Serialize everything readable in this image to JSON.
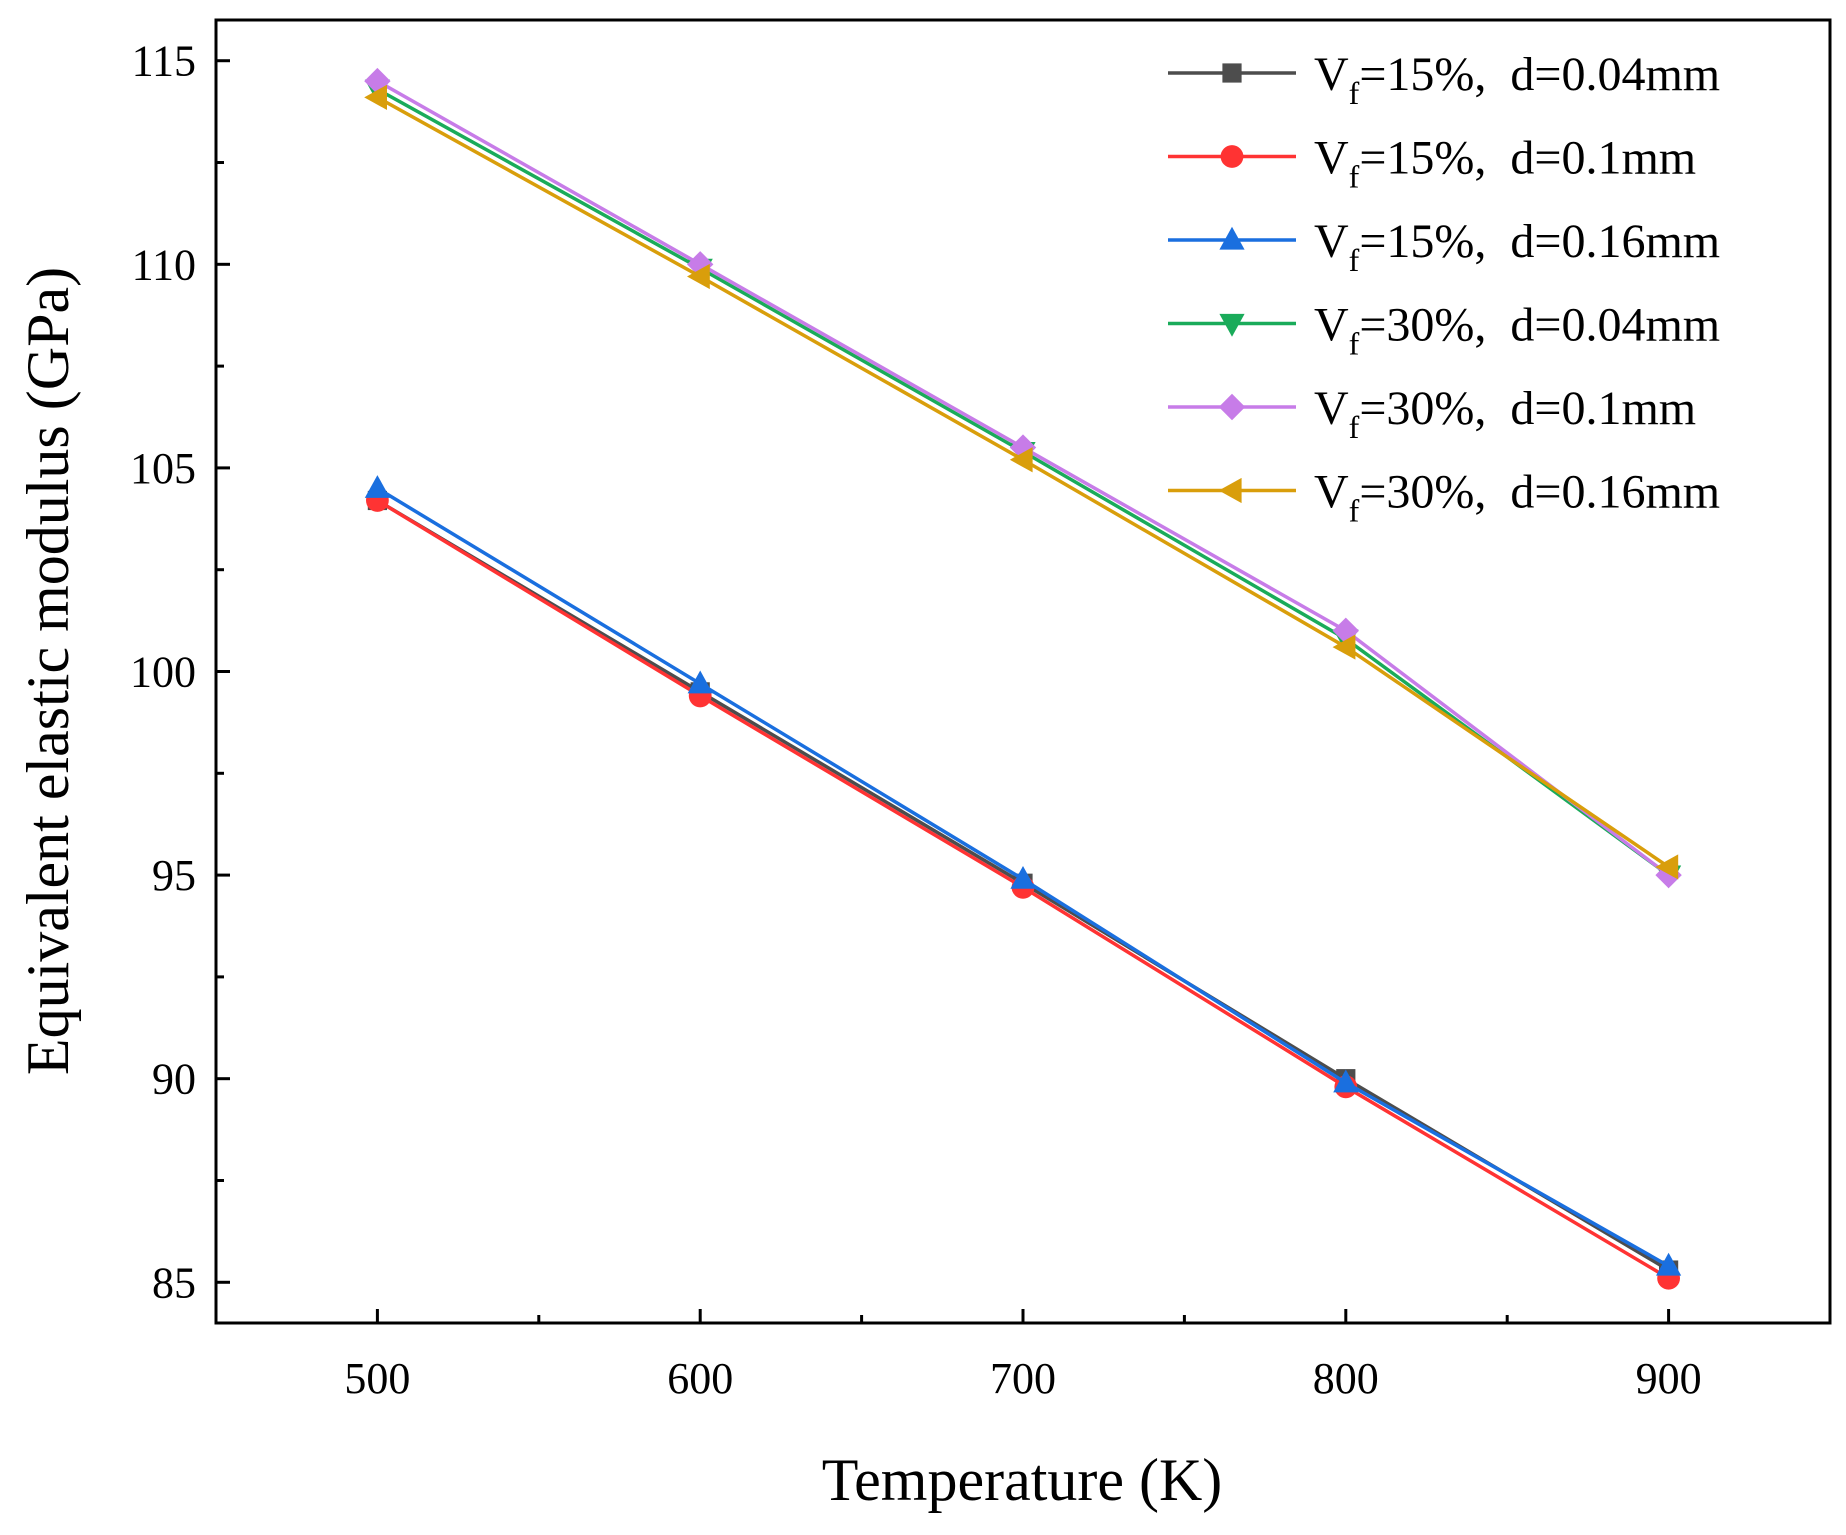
{
  "chart_data": {
    "type": "line",
    "title": "",
    "xlabel": "Temperature (K)",
    "ylabel": "Equivalent elastic modulus (GPa)",
    "xlim": [
      450,
      950
    ],
    "ylim": [
      84,
      116
    ],
    "xticks": [
      500,
      600,
      700,
      800,
      900
    ],
    "yticks": [
      85,
      90,
      95,
      100,
      105,
      110,
      115
    ],
    "x": [
      500,
      600,
      700,
      800,
      900
    ],
    "legend_position": "top-right",
    "series": [
      {
        "name": "Vf=15%, d=0.04mm",
        "label_main": "V",
        "label_sub": "f",
        "label_rest": "=15%,  d=0.04mm",
        "color": "#4d4d4d",
        "marker": "square",
        "values": [
          104.2,
          99.5,
          94.8,
          90.0,
          85.3
        ]
      },
      {
        "name": "Vf=15%, d=0.1mm",
        "label_main": "V",
        "label_sub": "f",
        "label_rest": "=15%,  d=0.1mm",
        "color": "#ff3333",
        "marker": "circle",
        "values": [
          104.2,
          99.4,
          94.7,
          89.8,
          85.1
        ]
      },
      {
        "name": "Vf=15%, d=0.16mm",
        "label_main": "V",
        "label_sub": "f",
        "label_rest": "=15%,  d=0.16mm",
        "color": "#1a6fdf",
        "marker": "triangle-up",
        "values": [
          104.5,
          99.7,
          94.9,
          89.9,
          85.4
        ]
      },
      {
        "name": "Vf=30%, d=0.04mm",
        "label_main": "V",
        "label_sub": "f",
        "label_rest": "=30%,  d=0.04mm",
        "color": "#1aab5a",
        "marker": "triangle-down",
        "values": [
          114.3,
          109.9,
          105.4,
          100.8,
          95.0
        ]
      },
      {
        "name": "Vf=30%, d=0.1mm",
        "label_main": "V",
        "label_sub": "f",
        "label_rest": "=30%,  d=0.1mm",
        "color": "#c77ce8",
        "marker": "diamond",
        "values": [
          114.5,
          110.0,
          105.5,
          101.0,
          95.0
        ]
      },
      {
        "name": "Vf=30%, d=0.16mm",
        "label_main": "V",
        "label_sub": "f",
        "label_rest": "=30%,  d=0.16mm",
        "color": "#d99e0b",
        "marker": "triangle-left",
        "values": [
          114.1,
          109.7,
          105.2,
          100.6,
          95.2
        ]
      }
    ]
  }
}
